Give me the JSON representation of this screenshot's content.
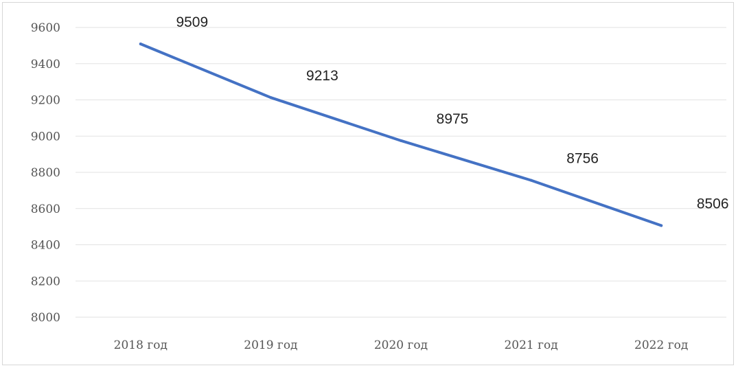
{
  "chart_data": {
    "type": "line",
    "categories": [
      "2018 год",
      "2019 год",
      "2020 год",
      "2021 год",
      "2022 год"
    ],
    "series": [
      {
        "values": [
          9509,
          9213,
          8975,
          8756,
          8506
        ],
        "color": "#4472c4"
      }
    ],
    "data_labels": [
      "9509",
      "9213",
      "8975",
      "8756",
      "8506"
    ],
    "ylim": [
      8000,
      9600
    ],
    "yticks": [
      "8000",
      "8200",
      "8400",
      "8600",
      "8800",
      "9000",
      "9200",
      "9400",
      "9600"
    ],
    "grid": true,
    "legend": "none",
    "title": "",
    "xlabel": "",
    "ylabel": ""
  }
}
